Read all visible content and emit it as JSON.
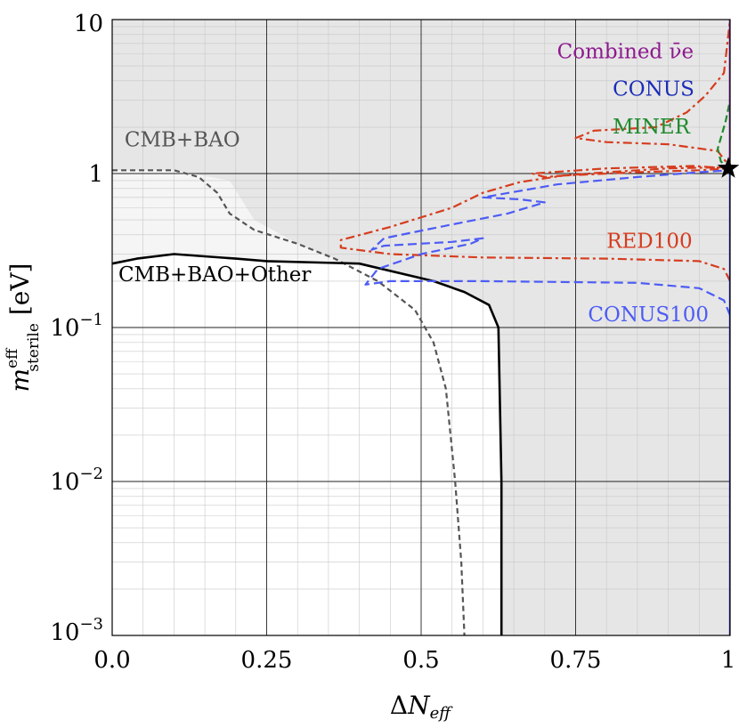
{
  "chart_data": {
    "type": "line",
    "title": "",
    "xlabel": "ΔN_eff",
    "ylabel": "m^eff_sterile [eV]",
    "x_ticks": [
      {
        "value": 0,
        "label": "0.0"
      },
      {
        "value": 0.25,
        "label": "0.25"
      },
      {
        "value": 0.5,
        "label": "0.5"
      },
      {
        "value": 0.75,
        "label": "0.75"
      },
      {
        "value": 1,
        "label": "1"
      }
    ],
    "y_ticks": [
      {
        "value": 10,
        "label": "10"
      },
      {
        "value": 1,
        "label": "1"
      },
      {
        "value": 0.1,
        "label": "10^-1"
      },
      {
        "value": 0.01,
        "label": "10^-2"
      },
      {
        "value": 0.001,
        "label": "10^-3"
      }
    ],
    "xlim": [
      0,
      1
    ],
    "ylim": [
      0.001,
      10
    ],
    "yscale": "log",
    "regions": [
      {
        "name": "CMB+BAO excluded",
        "color": "#e6e6e6",
        "points": [
          [
            0,
            10
          ],
          [
            1,
            10
          ],
          [
            1,
            0.001
          ],
          [
            0.57,
            0.001
          ],
          [
            0.56,
            0.01
          ],
          [
            0.54,
            0.04
          ],
          [
            0.52,
            0.08
          ],
          [
            0.49,
            0.13
          ],
          [
            0.43,
            0.2
          ],
          [
            0.36,
            0.28
          ],
          [
            0.3,
            0.35
          ],
          [
            0.23,
            0.5
          ],
          [
            0.19,
            0.9
          ],
          [
            0.1,
            1.05
          ],
          [
            0,
            1.05
          ]
        ]
      },
      {
        "name": "CMB+BAO+Other allowed",
        "color": "#ffffff",
        "points": [
          [
            0,
            0.001
          ],
          [
            0.63,
            0.001
          ],
          [
            0.63,
            0.01
          ],
          [
            0.625,
            0.1
          ],
          [
            0.61,
            0.14
          ],
          [
            0.57,
            0.17
          ],
          [
            0.52,
            0.2
          ],
          [
            0.4,
            0.26
          ],
          [
            0.25,
            0.27
          ],
          [
            0.1,
            0.3
          ],
          [
            0.04,
            0.28
          ],
          [
            0,
            0.26
          ]
        ]
      }
    ],
    "series": [
      {
        "name": "CMB+BAO",
        "color": "#555555",
        "dash": "6 4",
        "width": 2.2,
        "points": [
          [
            0,
            1.05
          ],
          [
            0.1,
            1.05
          ],
          [
            0.14,
            0.95
          ],
          [
            0.17,
            0.75
          ],
          [
            0.19,
            0.55
          ],
          [
            0.23,
            0.43
          ],
          [
            0.3,
            0.35
          ],
          [
            0.36,
            0.28
          ],
          [
            0.43,
            0.2
          ],
          [
            0.49,
            0.13
          ],
          [
            0.52,
            0.08
          ],
          [
            0.54,
            0.04
          ],
          [
            0.555,
            0.01
          ],
          [
            0.565,
            0.003
          ],
          [
            0.57,
            0.001
          ]
        ]
      },
      {
        "name": "CMB+BAO+Other",
        "color": "#000000",
        "dash": "",
        "width": 2.6,
        "points": [
          [
            0,
            0.26
          ],
          [
            0.04,
            0.28
          ],
          [
            0.1,
            0.3
          ],
          [
            0.2,
            0.28
          ],
          [
            0.25,
            0.27
          ],
          [
            0.4,
            0.26
          ],
          [
            0.52,
            0.2
          ],
          [
            0.57,
            0.17
          ],
          [
            0.61,
            0.14
          ],
          [
            0.625,
            0.1
          ],
          [
            0.63,
            0.01
          ],
          [
            0.63,
            0.001
          ]
        ]
      },
      {
        "name": "RED100",
        "color": "#d63c1e",
        "dash": "10 4 3 4",
        "width": 2.2,
        "points": [
          [
            1,
            0.2
          ],
          [
            0.99,
            0.24
          ],
          [
            0.95,
            0.27
          ],
          [
            0.8,
            0.28
          ],
          [
            0.6,
            0.285
          ],
          [
            0.45,
            0.3
          ],
          [
            0.37,
            0.33
          ],
          [
            0.37,
            0.37
          ],
          [
            0.45,
            0.45
          ],
          [
            0.55,
            0.6
          ],
          [
            0.6,
            0.75
          ],
          [
            0.66,
            0.88
          ],
          [
            0.73,
            0.97
          ],
          [
            0.85,
            1.02
          ],
          [
            0.95,
            1.05
          ],
          [
            1,
            1.08
          ],
          [
            0.94,
            1.12
          ],
          [
            0.8,
            1.08
          ],
          [
            0.68,
            1.0
          ],
          [
            0.7,
            0.95
          ],
          [
            0.8,
            1.02
          ],
          [
            0.9,
            1.08
          ],
          [
            1,
            1.1
          ],
          [
            0.98,
            1.4
          ],
          [
            0.9,
            1.55
          ],
          [
            0.8,
            1.6
          ],
          [
            0.75,
            1.7
          ],
          [
            0.78,
            1.9
          ],
          [
            0.88,
            2.0
          ],
          [
            0.93,
            2.5
          ],
          [
            0.96,
            3.2
          ],
          [
            0.99,
            4.5
          ],
          [
            1,
            10
          ]
        ]
      },
      {
        "name": "CONUS100",
        "color": "#4d5cf5",
        "dash": "10 5",
        "width": 2.2,
        "points": [
          [
            1,
            0.12
          ],
          [
            0.99,
            0.15
          ],
          [
            0.95,
            0.18
          ],
          [
            0.85,
            0.195
          ],
          [
            0.6,
            0.2
          ],
          [
            0.45,
            0.2
          ],
          [
            0.41,
            0.19
          ],
          [
            0.43,
            0.24
          ],
          [
            0.5,
            0.3
          ],
          [
            0.58,
            0.35
          ],
          [
            0.6,
            0.38
          ],
          [
            0.55,
            0.36
          ],
          [
            0.44,
            0.34
          ],
          [
            0.42,
            0.32
          ],
          [
            0.44,
            0.38
          ],
          [
            0.53,
            0.45
          ],
          [
            0.64,
            0.55
          ],
          [
            0.7,
            0.65
          ],
          [
            0.66,
            0.68
          ],
          [
            0.6,
            0.7
          ],
          [
            0.72,
            0.85
          ],
          [
            0.85,
            0.95
          ],
          [
            0.95,
            1.02
          ],
          [
            1,
            1.05
          ]
        ]
      },
      {
        "name": "MINER",
        "color": "#1f8a2e",
        "dash": "8 4",
        "width": 2.2,
        "points": [
          [
            1,
            1.05
          ],
          [
            0.985,
            1.2
          ],
          [
            0.98,
            1.45
          ],
          [
            0.985,
            1.7
          ],
          [
            0.993,
            2.2
          ],
          [
            1,
            3
          ]
        ]
      },
      {
        "name": "CONUS",
        "color": "#1c2db8",
        "dash": "",
        "width": 2.4,
        "points": [
          [
            1,
            0.001
          ],
          [
            1,
            10
          ]
        ]
      },
      {
        "name": "Combined νe",
        "color": "#8e1a8e",
        "dash": "",
        "width": 2.4,
        "points": [
          [
            1,
            1.1
          ],
          [
            1,
            10
          ]
        ]
      }
    ],
    "best_fit_marker": {
      "x": 1,
      "y": 1.08,
      "symbol": "star"
    },
    "annotations": [
      {
        "key": "combined_label",
        "text": "Combined ν̄e",
        "x": 0.72,
        "y": 5.6,
        "color": "#8e1a8e"
      },
      {
        "key": "conus_label",
        "text": "CONUS",
        "x": 0.81,
        "y": 3.2,
        "color": "#1c2db8"
      },
      {
        "key": "miner_label",
        "text": "MINER",
        "x": 0.81,
        "y": 1.82,
        "color": "#1f8a2e"
      },
      {
        "key": "cmb_bao_label",
        "text": "CMB+BAO",
        "x": 0.02,
        "y": 1.5,
        "color": "#555555"
      },
      {
        "key": "red100_label",
        "text": "RED100",
        "x": 0.8,
        "y": 0.33,
        "color": "#d63c1e"
      },
      {
        "key": "cmb_bao_other_label",
        "text": "CMB+BAO+Other",
        "x": 0.01,
        "y": 0.2,
        "color": "#000000"
      },
      {
        "key": "conus100_label",
        "text": "CONUS100",
        "x": 0.77,
        "y": 0.11,
        "color": "#4d5cf5"
      }
    ]
  }
}
